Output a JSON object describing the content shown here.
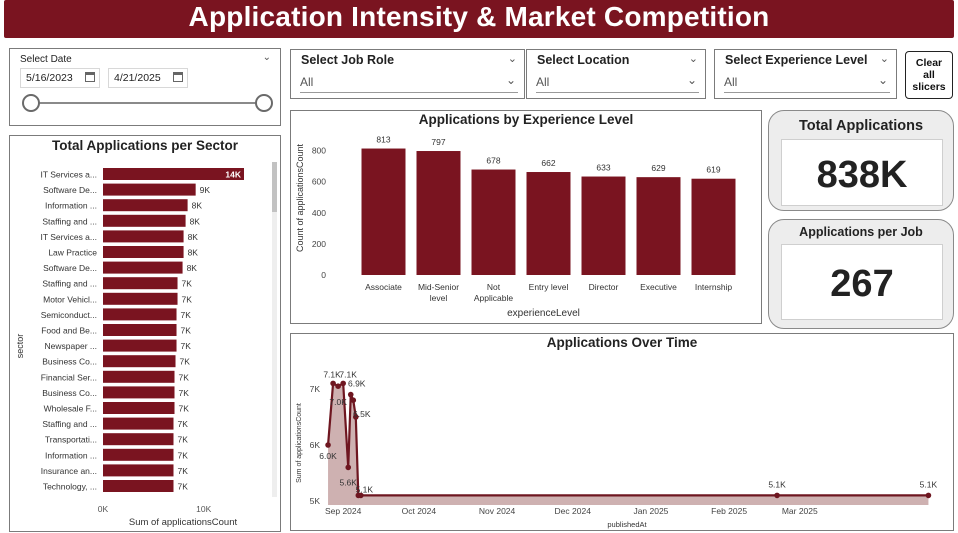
{
  "header": {
    "title": "Application Intensity & Market Competition"
  },
  "date_slicer": {
    "title": "Select Date",
    "start": "5/16/2023",
    "end": "4/21/2025"
  },
  "slicers": [
    {
      "label": "Select Job Role",
      "value": "All"
    },
    {
      "label": "Select Location",
      "value": "All"
    },
    {
      "label": "Select Experience Level",
      "value": "All"
    }
  ],
  "clear_button": {
    "lines": [
      "Clear",
      "all",
      "slicers"
    ]
  },
  "cards": {
    "total": {
      "title": "Total Applications",
      "value": "838K"
    },
    "per_job": {
      "title": "Applications per Job",
      "value": "267"
    }
  },
  "colors": {
    "brand": "#7a1420",
    "bar": "#7a1420",
    "bar_light": "#8c2d38",
    "area": "#c9a8a8",
    "line": "#6e1620"
  },
  "chart_data": [
    {
      "type": "bar",
      "orientation": "horizontal",
      "title": "Total Applications per Sector",
      "xlabel": "Sum of applicationsCount",
      "ylabel": "sector",
      "x_ticks": [
        "0K",
        "10K"
      ],
      "xlim": [
        0,
        14000
      ],
      "categories": [
        "IT Services a...",
        "Software De...",
        "Information ...",
        "Staffing and ...",
        "IT Services a...",
        "Law Practice",
        "Software De...",
        "Staffing and ...",
        "Motor Vehicl...",
        "Semiconduct...",
        "Food and Be...",
        "Newspaper ...",
        "Business Co...",
        "Financial Ser...",
        "Business Co...",
        "Wholesale F...",
        "Staffing and ...",
        "Transportati...",
        "Information ...",
        "Insurance an...",
        "Technology, ..."
      ],
      "values": [
        14000,
        9200,
        8400,
        8200,
        8000,
        8000,
        7900,
        7400,
        7400,
        7300,
        7300,
        7300,
        7200,
        7100,
        7100,
        7100,
        7000,
        7000,
        7000,
        7000,
        7000
      ],
      "labels": [
        "14K",
        "9K",
        "8K",
        "8K",
        "8K",
        "8K",
        "8K",
        "7K",
        "7K",
        "7K",
        "7K",
        "7K",
        "7K",
        "7K",
        "7K",
        "7K",
        "7K",
        "7K",
        "7K",
        "7K",
        "7K"
      ]
    },
    {
      "type": "bar",
      "title": "Applications by Experience Level",
      "xlabel": "experienceLevel",
      "ylabel": "Count of applicationsCount",
      "ylim": [
        0,
        900
      ],
      "y_ticks": [
        0,
        200,
        400,
        600,
        800
      ],
      "categories": [
        [
          "Associate"
        ],
        [
          "Mid-Senior",
          "level"
        ],
        [
          "Not",
          "Applicable"
        ],
        [
          "Entry level"
        ],
        [
          "Director"
        ],
        [
          "Executive"
        ],
        [
          "Internship"
        ]
      ],
      "values": [
        813,
        797,
        678,
        662,
        633,
        629,
        619
      ]
    },
    {
      "type": "area",
      "title": "Applications Over Time",
      "xlabel": "publishedAt",
      "ylabel": "Sum of applicationsCount",
      "y_ticks": [
        "5K",
        "6K",
        "7K"
      ],
      "ylim": [
        5000,
        7500
      ],
      "x_ticks": [
        "Sep 2024",
        "Oct 2024",
        "Nov 2024",
        "Dec 2024",
        "Jan 2025",
        "Feb 2025",
        "Mar 2025"
      ],
      "x": [
        "2024-08-26",
        "2024-08-28",
        "2024-08-30",
        "2024-09-01",
        "2024-09-03",
        "2024-09-04",
        "2024-09-05",
        "2024-09-06",
        "2024-09-07",
        "2024-09-08",
        "2025-02-20",
        "2025-04-21"
      ],
      "values": [
        6000,
        7100,
        7050,
        7100,
        5600,
        6900,
        6800,
        6500,
        5100,
        5100,
        5100,
        5100
      ],
      "point_labels": [
        "6.0K",
        "7.1K",
        "7.0K",
        "7.1K",
        "5.6K",
        "6.9K",
        "",
        "6.5K",
        "5.1K",
        "",
        "5.1K",
        "5.1K"
      ]
    }
  ]
}
